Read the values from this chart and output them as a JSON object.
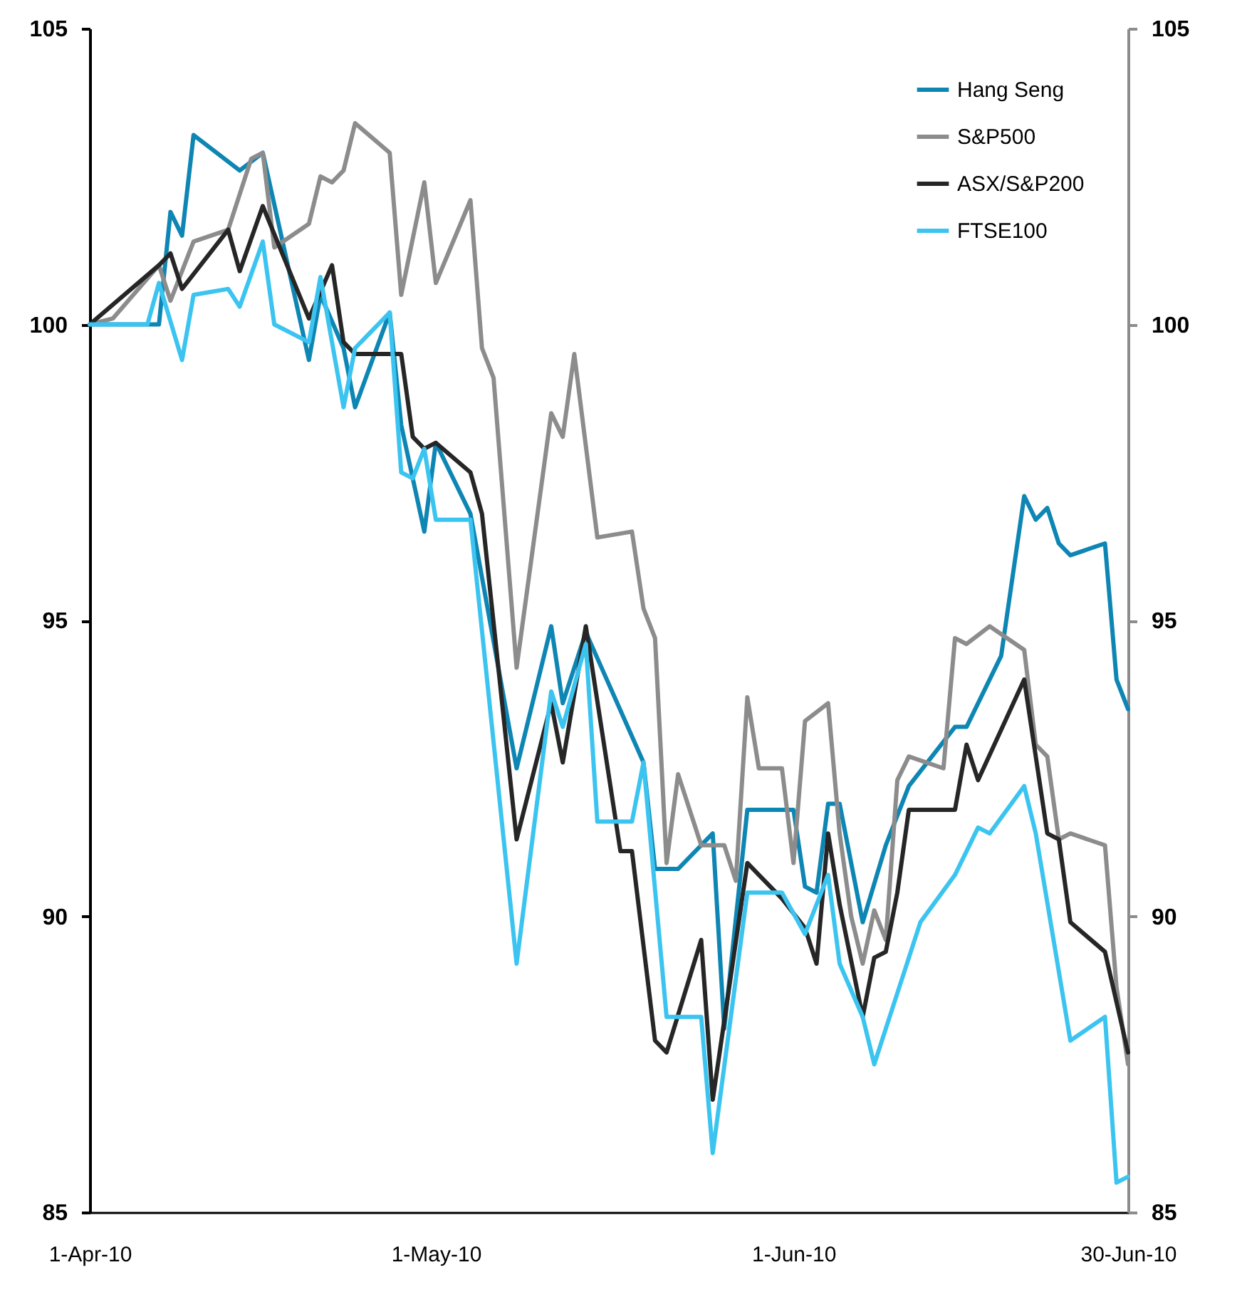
{
  "chart_data": {
    "type": "line",
    "xlim": [
      "2010-04-01",
      "2010-06-30"
    ],
    "xticks": [
      {
        "value": "2010-04-01",
        "label": "1-Apr-10"
      },
      {
        "value": "2010-05-01",
        "label": "1-May-10"
      },
      {
        "value": "2010-06-01",
        "label": "1-Jun-10"
      },
      {
        "value": "2010-06-30",
        "label": "30-Jun-10"
      }
    ],
    "ylim": [
      85,
      105
    ],
    "yticks": [
      85,
      90,
      95,
      100,
      105
    ],
    "y2lim": [
      85,
      105
    ],
    "y2ticks": [
      85,
      90,
      95,
      100,
      105
    ],
    "grid": false,
    "legend": "top right",
    "series": [
      {
        "name": "Hang Seng",
        "color": "#0e86b4",
        "x": [
          "2010-04-01",
          "2010-04-07",
          "2010-04-08",
          "2010-04-09",
          "2010-04-10",
          "2010-04-14",
          "2010-04-16",
          "2010-04-20",
          "2010-04-21",
          "2010-04-23",
          "2010-04-24",
          "2010-04-27",
          "2010-04-28",
          "2010-04-30",
          "2010-05-01",
          "2010-05-04",
          "2010-05-08",
          "2010-05-11",
          "2010-05-12",
          "2010-05-14",
          "2010-05-19",
          "2010-05-20",
          "2010-05-22",
          "2010-05-25",
          "2010-05-26",
          "2010-05-28",
          "2010-06-01",
          "2010-06-02",
          "2010-06-03",
          "2010-06-04",
          "2010-06-05",
          "2010-06-07",
          "2010-06-09",
          "2010-06-11",
          "2010-06-15",
          "2010-06-16",
          "2010-06-19",
          "2010-06-21",
          "2010-06-22",
          "2010-06-23",
          "2010-06-24",
          "2010-06-25",
          "2010-06-28",
          "2010-06-29",
          "2010-06-30"
        ],
        "values": [
          100,
          100,
          101.9,
          101.5,
          103.2,
          102.6,
          102.9,
          99.4,
          100.5,
          99.6,
          98.6,
          100.2,
          98.3,
          96.5,
          98.0,
          96.8,
          92.5,
          94.9,
          93.6,
          94.8,
          92.6,
          90.8,
          90.8,
          91.4,
          88.1,
          91.8,
          91.8,
          90.5,
          90.4,
          91.9,
          91.9,
          89.9,
          91.2,
          92.2,
          93.2,
          93.2,
          94.4,
          97.1,
          96.7,
          96.9,
          96.3,
          96.1,
          96.3,
          94.0,
          93.5
        ]
      },
      {
        "name": "S&P500",
        "color": "#8c8c8c",
        "x": [
          "2010-04-01",
          "2010-04-03",
          "2010-04-07",
          "2010-04-08",
          "2010-04-10",
          "2010-04-13",
          "2010-04-15",
          "2010-04-16",
          "2010-04-17",
          "2010-04-20",
          "2010-04-21",
          "2010-04-22",
          "2010-04-23",
          "2010-04-24",
          "2010-04-27",
          "2010-04-28",
          "2010-04-30",
          "2010-05-01",
          "2010-05-04",
          "2010-05-05",
          "2010-05-06",
          "2010-05-08",
          "2010-05-11",
          "2010-05-12",
          "2010-05-13",
          "2010-05-15",
          "2010-05-18",
          "2010-05-19",
          "2010-05-20",
          "2010-05-21",
          "2010-05-22",
          "2010-05-24",
          "2010-05-26",
          "2010-05-27",
          "2010-05-28",
          "2010-05-29",
          "2010-05-31",
          "2010-06-01",
          "2010-06-02",
          "2010-06-04",
          "2010-06-05",
          "2010-06-06",
          "2010-06-07",
          "2010-06-08",
          "2010-06-09",
          "2010-06-10",
          "2010-06-11",
          "2010-06-14",
          "2010-06-15",
          "2010-06-16",
          "2010-06-18",
          "2010-06-21",
          "2010-06-22",
          "2010-06-23",
          "2010-06-24",
          "2010-06-25",
          "2010-06-28",
          "2010-06-29",
          "2010-06-30"
        ],
        "values": [
          100,
          100.1,
          101.0,
          100.4,
          101.4,
          101.6,
          102.8,
          102.9,
          101.3,
          101.7,
          102.5,
          102.4,
          102.6,
          103.4,
          102.9,
          100.5,
          102.4,
          100.7,
          102.1,
          99.6,
          99.1,
          94.2,
          98.5,
          98.1,
          99.5,
          96.4,
          96.5,
          95.2,
          94.7,
          90.9,
          92.4,
          91.2,
          91.2,
          90.6,
          93.7,
          92.5,
          92.5,
          90.9,
          93.3,
          93.6,
          91.4,
          90.0,
          89.2,
          90.1,
          89.6,
          92.3,
          92.7,
          92.5,
          94.7,
          94.6,
          94.9,
          94.5,
          92.9,
          92.7,
          91.3,
          91.4,
          91.2,
          88.8,
          87.5
        ]
      },
      {
        "name": "ASX/S&P200",
        "color": "#262626",
        "x": [
          "2010-04-01",
          "2010-04-07",
          "2010-04-08",
          "2010-04-09",
          "2010-04-13",
          "2010-04-14",
          "2010-04-16",
          "2010-04-20",
          "2010-04-22",
          "2010-04-23",
          "2010-04-24",
          "2010-04-28",
          "2010-04-29",
          "2010-04-30",
          "2010-05-01",
          "2010-05-04",
          "2010-05-05",
          "2010-05-08",
          "2010-05-11",
          "2010-05-12",
          "2010-05-14",
          "2010-05-17",
          "2010-05-18",
          "2010-05-20",
          "2010-05-21",
          "2010-05-24",
          "2010-05-25",
          "2010-05-28",
          "2010-05-29",
          "2010-05-31",
          "2010-06-02",
          "2010-06-03",
          "2010-06-04",
          "2010-06-05",
          "2010-06-07",
          "2010-06-08",
          "2010-06-09",
          "2010-06-10",
          "2010-06-11",
          "2010-06-15",
          "2010-06-16",
          "2010-06-17",
          "2010-06-21",
          "2010-06-22",
          "2010-06-23",
          "2010-06-24",
          "2010-06-25",
          "2010-06-28",
          "2010-06-30"
        ],
        "values": [
          100,
          101.0,
          101.2,
          100.6,
          101.6,
          100.9,
          102.0,
          100.1,
          101.0,
          99.7,
          99.5,
          99.5,
          98.1,
          97.9,
          98.0,
          97.5,
          96.8,
          91.3,
          93.6,
          92.6,
          94.9,
          91.1,
          91.1,
          87.9,
          87.7,
          89.6,
          86.9,
          90.9,
          90.7,
          90.3,
          89.8,
          89.2,
          91.4,
          90.2,
          88.3,
          89.3,
          89.4,
          90.4,
          91.8,
          91.8,
          92.9,
          92.3,
          94.0,
          92.7,
          91.4,
          91.3,
          89.9,
          89.4,
          87.7
        ]
      },
      {
        "name": "FTSE100",
        "color": "#3cc4f0",
        "x": [
          "2010-04-01",
          "2010-04-06",
          "2010-04-07",
          "2010-04-09",
          "2010-04-10",
          "2010-04-13",
          "2010-04-14",
          "2010-04-16",
          "2010-04-17",
          "2010-04-20",
          "2010-04-21",
          "2010-04-23",
          "2010-04-24",
          "2010-04-27",
          "2010-04-28",
          "2010-04-29",
          "2010-04-30",
          "2010-05-01",
          "2010-05-04",
          "2010-05-08",
          "2010-05-11",
          "2010-05-12",
          "2010-05-14",
          "2010-05-15",
          "2010-05-18",
          "2010-05-19",
          "2010-05-21",
          "2010-05-24",
          "2010-05-25",
          "2010-05-28",
          "2010-05-31",
          "2010-06-02",
          "2010-06-04",
          "2010-06-05",
          "2010-06-07",
          "2010-06-08",
          "2010-06-12",
          "2010-06-15",
          "2010-06-17",
          "2010-06-18",
          "2010-06-21",
          "2010-06-22",
          "2010-06-25",
          "2010-06-28",
          "2010-06-29",
          "2010-06-30"
        ],
        "values": [
          100,
          100,
          100.7,
          99.4,
          100.5,
          100.6,
          100.3,
          101.4,
          100.0,
          99.7,
          100.8,
          98.6,
          99.6,
          100.2,
          97.5,
          97.4,
          97.9,
          96.7,
          96.7,
          89.2,
          93.8,
          93.2,
          94.6,
          91.6,
          91.6,
          92.6,
          88.3,
          88.3,
          86.0,
          90.4,
          90.4,
          89.7,
          90.7,
          89.2,
          88.3,
          87.5,
          89.9,
          90.7,
          91.5,
          91.4,
          92.2,
          91.4,
          87.9,
          88.3,
          85.5,
          85.6
        ]
      }
    ]
  }
}
